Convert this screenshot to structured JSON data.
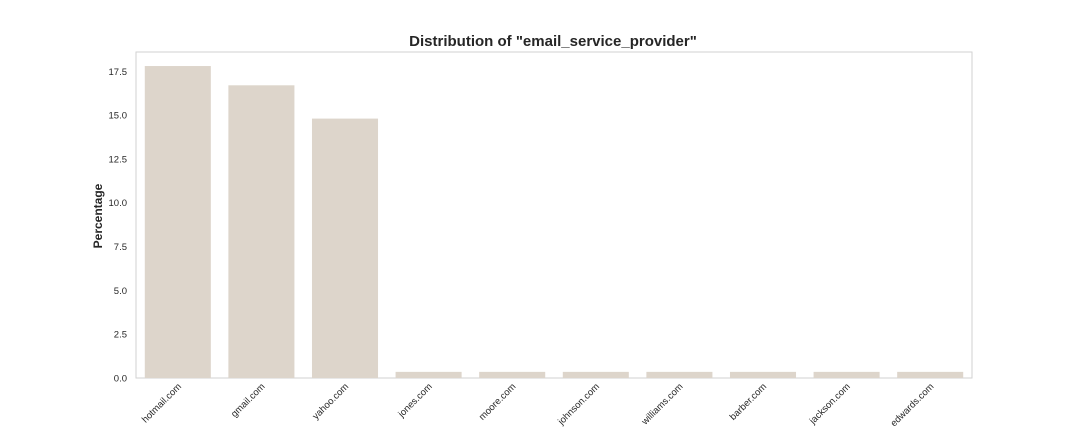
{
  "chart_data": {
    "type": "bar",
    "title": "Distribution of \"email_service_provider\"",
    "xlabel": "",
    "ylabel": "Percentage",
    "categories": [
      "hotmail.com",
      "gmail.com",
      "yahoo.com",
      "jones.com",
      "moore.com",
      "johnson.com",
      "williams.com",
      "barber.com",
      "jackson.com",
      "edwards.com"
    ],
    "values": [
      17.8,
      16.7,
      14.8,
      0.35,
      0.35,
      0.35,
      0.35,
      0.35,
      0.35,
      0.35
    ],
    "ylim": [
      0,
      18.6
    ],
    "yticks": [
      "0.0",
      "2.5",
      "5.0",
      "7.5",
      "10.0",
      "12.5",
      "15.0",
      "17.5"
    ],
    "bar_color": "#ddd5cb",
    "grid": false,
    "legend": "none"
  }
}
